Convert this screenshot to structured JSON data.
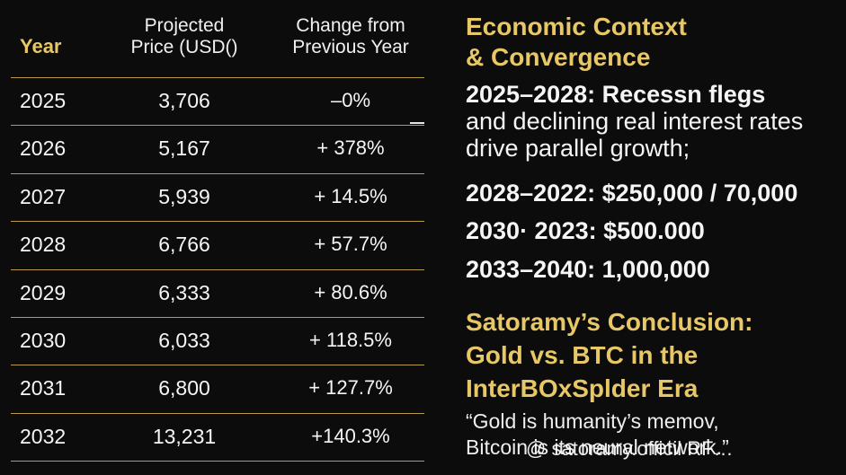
{
  "table": {
    "headers": {
      "year": "Year",
      "price": [
        "Projected",
        "Price (USD()"
      ],
      "change": [
        "Change from",
        "Previous Year"
      ]
    },
    "rows": [
      {
        "year": "2025",
        "price": "3,706",
        "change": "–0%"
      },
      {
        "year": "2026",
        "price": "5,167",
        "change": "+ 378%"
      },
      {
        "year": "2027",
        "price": "5,939",
        "change": "+ 14.5%"
      },
      {
        "year": "2028",
        "price": "6,766",
        "change": "+ 57.7%"
      },
      {
        "year": "2029",
        "price": "6,333",
        "change": "+ 80.6%"
      },
      {
        "year": "2030",
        "price": "6,033",
        "change": "+ 118.5%"
      },
      {
        "year": "2031",
        "price": "6,800",
        "change": "+ 127.7%"
      },
      {
        "year": "2032",
        "price": "13,231",
        "change": "+140.3%"
      }
    ]
  },
  "context": {
    "heading": [
      "Economic Context",
      "& Convergence"
    ],
    "growth_lead": "2025–2028: Recessn flegs",
    "growth_rest": [
      "and declining real interest rates",
      "drive parallel growth;"
    ],
    "lines": [
      "2028–2022: $250,000 / 70,000",
      "2030· 2023: $500.000",
      "2033–2040: 1,000,000"
    ]
  },
  "conclusion": {
    "heading": [
      "Satoramy’s Conclusion:",
      "Gold vs. BTC in the",
      "InterBOxSplder Era"
    ],
    "quote": [
      "“Gold is humanity’s memov,",
      "Bitcoin is its neural network.”"
    ]
  },
  "watermark": "@ satoramy.officil RF…"
}
